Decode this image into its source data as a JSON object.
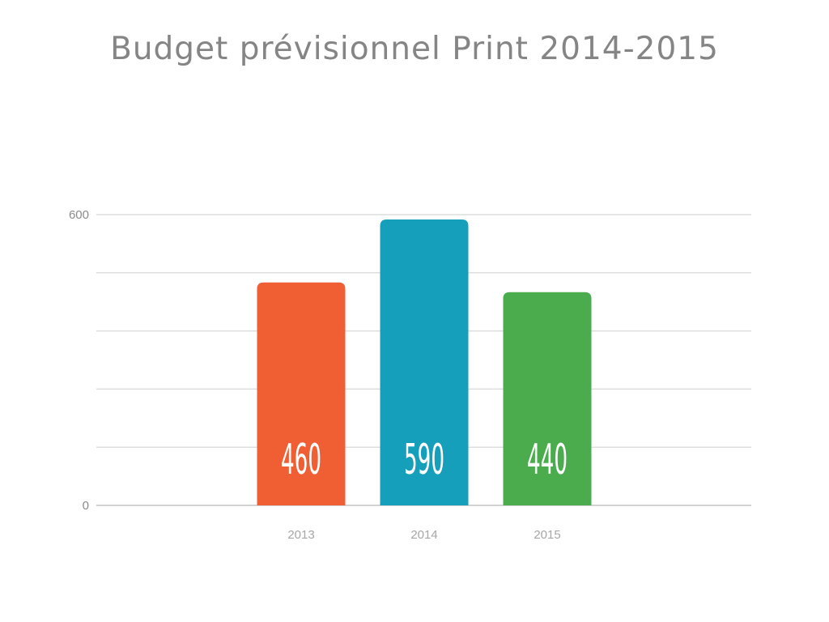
{
  "chart_data": {
    "type": "bar",
    "title": "Budget prévisionnel Print 2014-2015",
    "categories": [
      "2013",
      "2014",
      "2015"
    ],
    "values": [
      460,
      590,
      440
    ],
    "data_labels": [
      "460",
      "590",
      "440"
    ],
    "colors": [
      "#f05e34",
      "#169fbb",
      "#4aac4d"
    ],
    "ylim": [
      0,
      600
    ],
    "y_ticks": [
      {
        "value": 0,
        "label": "0"
      },
      {
        "value": 600,
        "label": "600"
      }
    ],
    "gridlines": [
      0,
      120,
      240,
      360,
      480,
      600
    ],
    "grid": true,
    "legend": "none"
  }
}
